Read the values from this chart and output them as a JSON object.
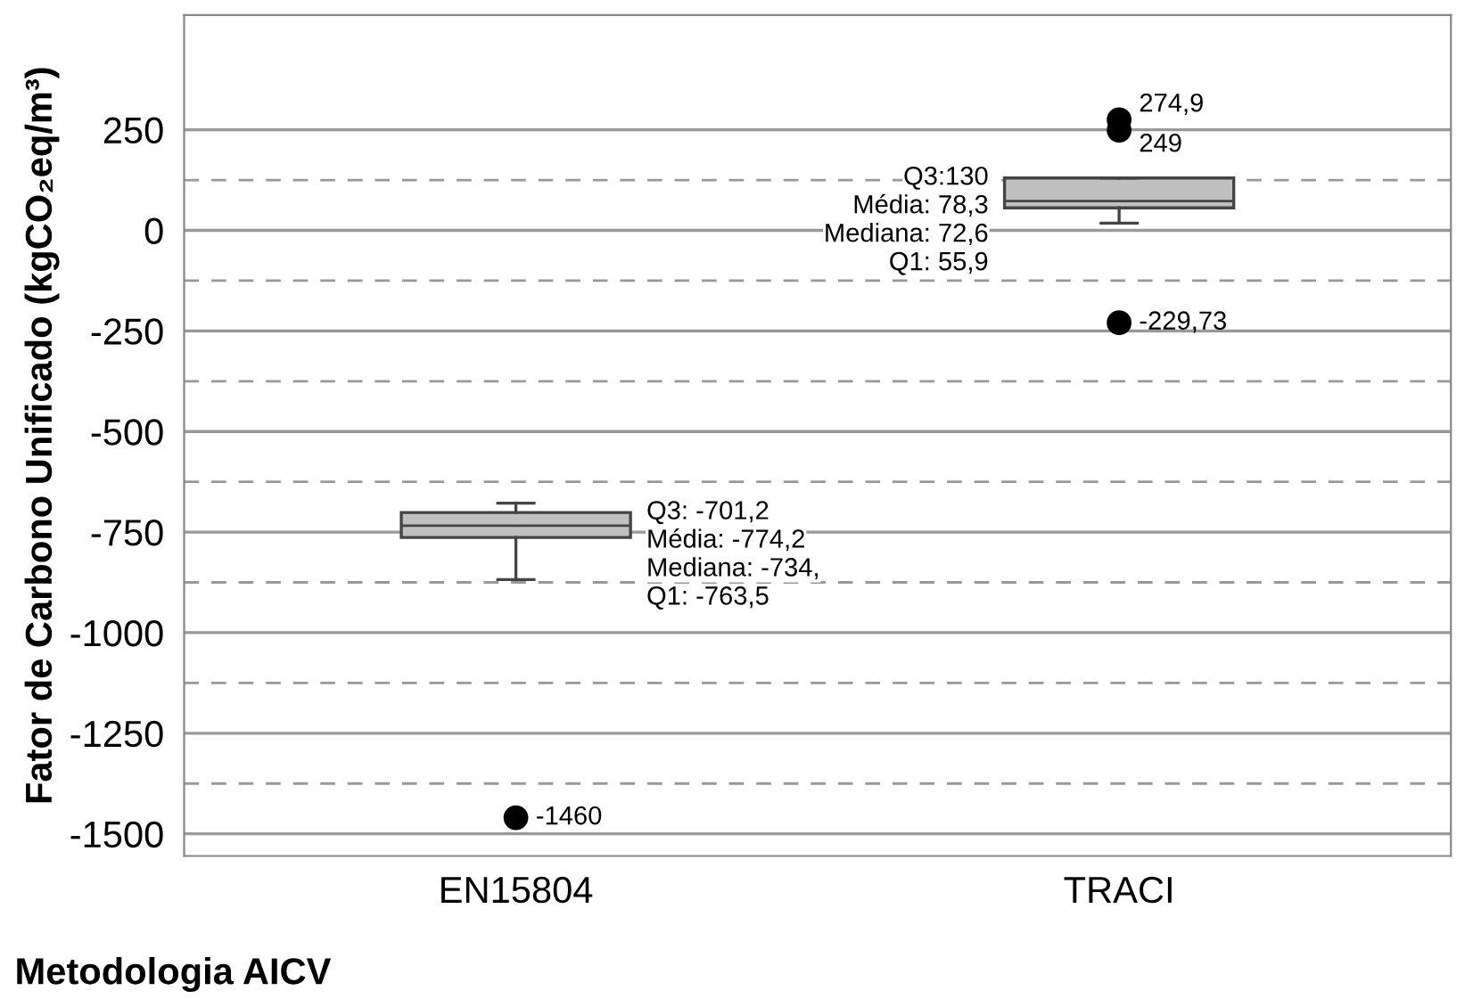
{
  "chart_data": {
    "type": "box",
    "categories": [
      "EN15804",
      "TRACI"
    ],
    "boxes": [
      {
        "low": -868,
        "q1": -763.5,
        "median": -734,
        "q3": -701.2,
        "high": -678,
        "outliers": [
          -1460
        ]
      },
      {
        "low": 18,
        "q1": 55.9,
        "median": 72.6,
        "q3": 130,
        "high": 130,
        "outliers": [
          274.9,
          249,
          -229.73
        ]
      }
    ],
    "color": "#c0c0c0",
    "xlabel": "Metodologia AICV",
    "ylabel": "Fator de Carbono Unificado (kgCO₂eq/m³)",
    "ylim": [
      -1555,
      535
    ],
    "yticks": [
      250,
      {
        "value": 125,
        "label": null
      },
      0,
      {
        "value": -125,
        "label": null
      },
      -250,
      {
        "value": -375,
        "label": null
      },
      -500,
      {
        "value": -625,
        "label": null
      },
      -750,
      {
        "value": -875,
        "label": null
      },
      -1000,
      {
        "value": -1125,
        "label": null
      },
      -1250,
      {
        "value": -1375,
        "label": null
      },
      -1500
    ],
    "grid": true,
    "annotations": [
      "Q3: -701,2",
      "Média: -774,2",
      "Mediana: -734,",
      "Q1: -763,5",
      "-1460",
      "Q3:130",
      "Média: 78,3",
      "Mediana: 72,6",
      "Q1: 55,9",
      "274,9",
      "249",
      "-229,73"
    ]
  }
}
